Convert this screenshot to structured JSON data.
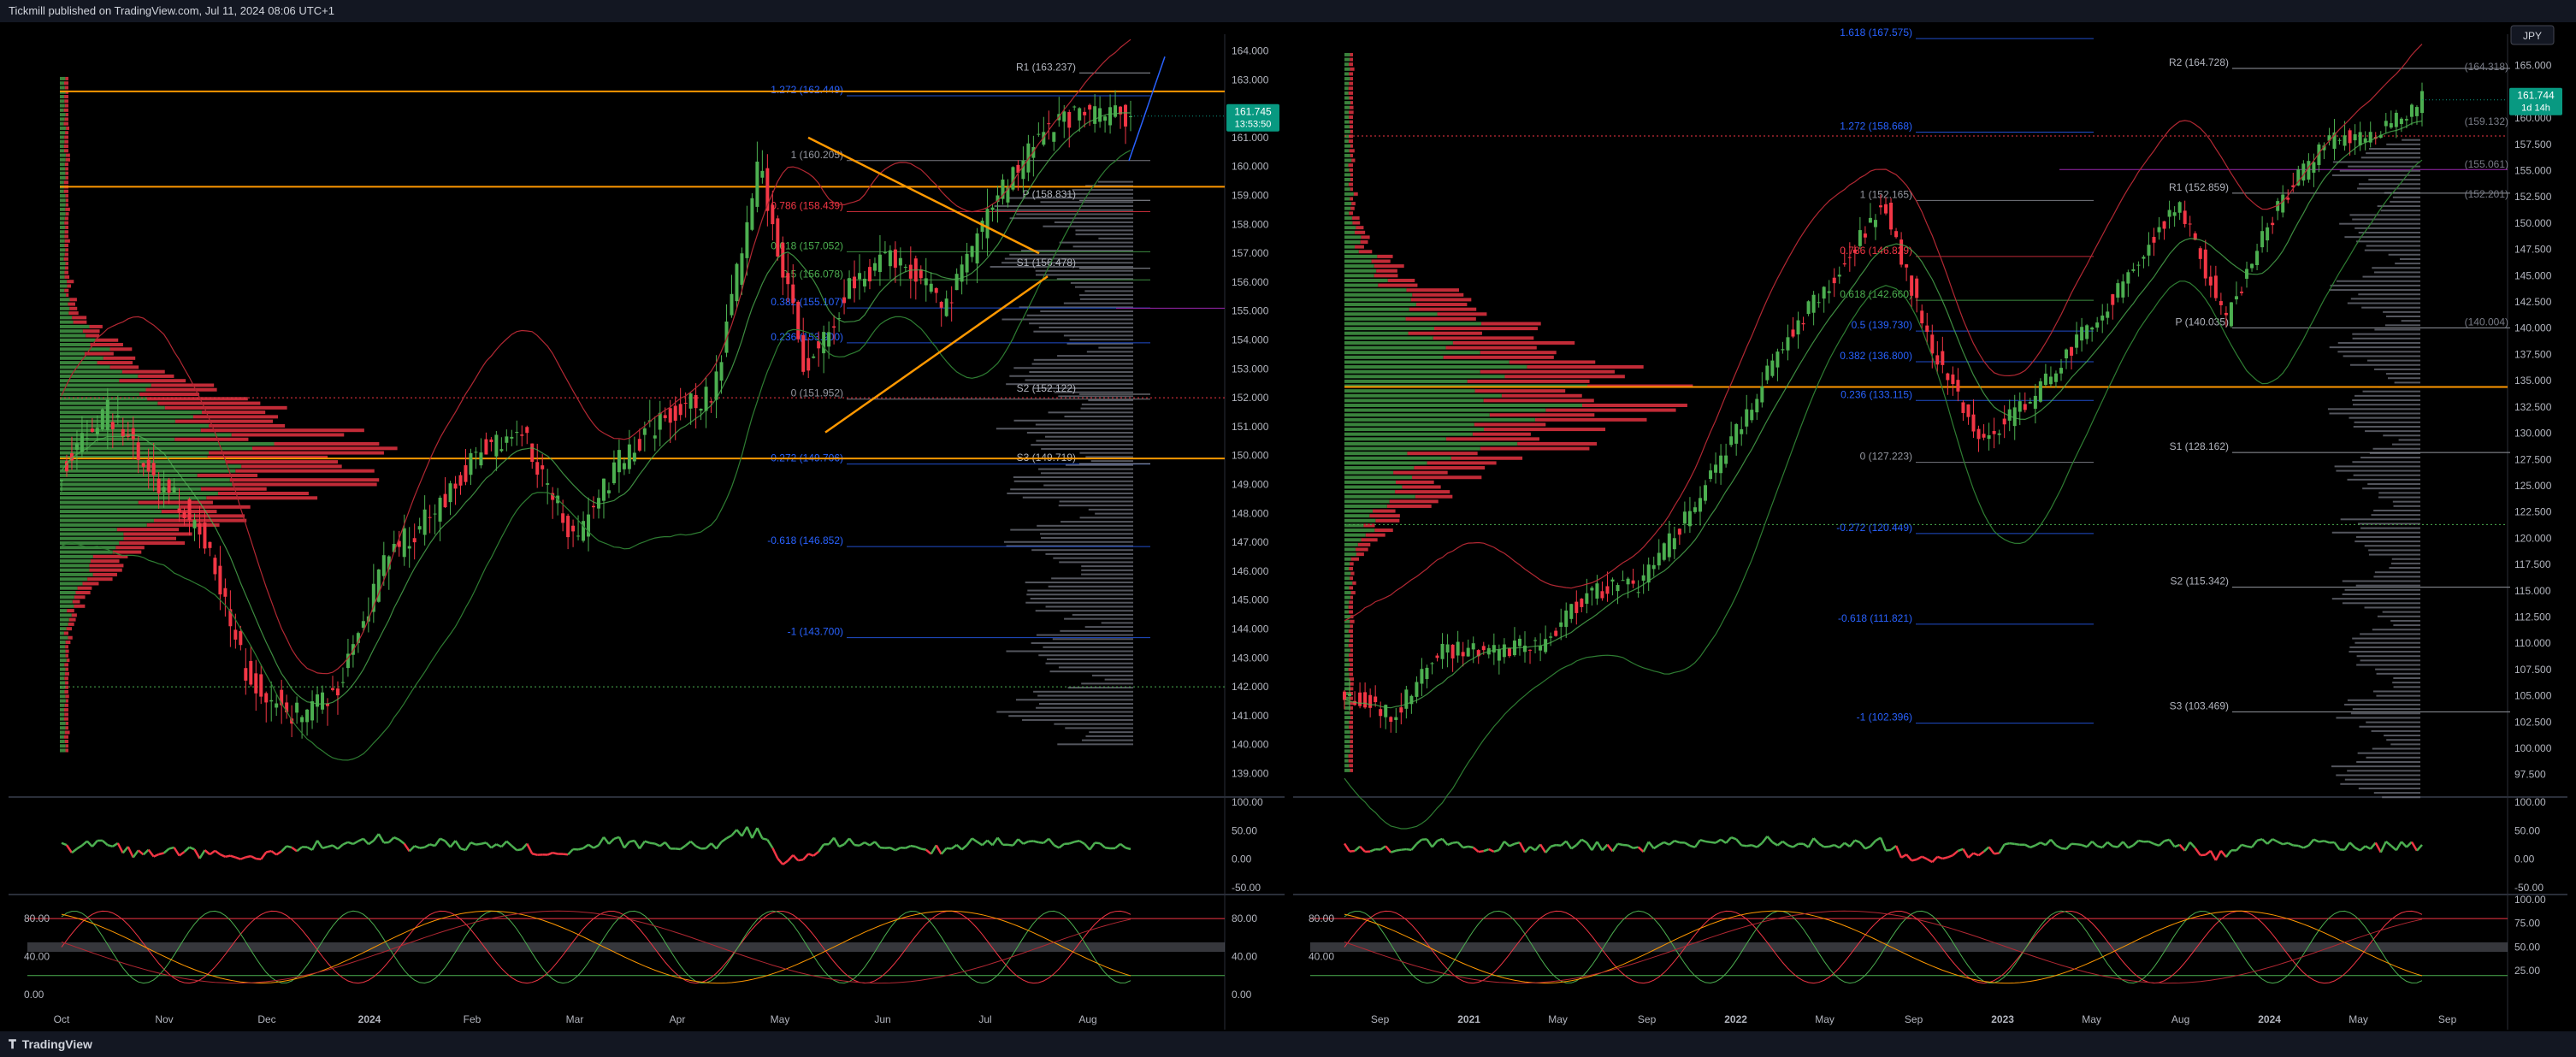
{
  "header": {
    "published": "Tickmill published on TradingView.com, Jul 11, 2024 08:06 UTC+1"
  },
  "footer": {
    "brand": "TradingView",
    "brand_icon": "tradingview-logo-icon"
  },
  "colors": {
    "up": "#4caf50",
    "down": "#f23645",
    "fib_blue": "#2962ff",
    "orange": "#ff9800",
    "pivot_grey": "#9598a1",
    "bb_red": "#b22833",
    "bb_green": "#2e7d32",
    "price_box": "#089981"
  },
  "chart_data": [
    {
      "type": "line",
      "panel": "left",
      "title": "",
      "interval": "daily",
      "x_ticks": [
        "Oct",
        "Nov",
        "Dec",
        "2024",
        "Feb",
        "Mar",
        "Apr",
        "May",
        "Jun",
        "Jul",
        "Aug"
      ],
      "y_ticks": [
        "164.000",
        "163.000",
        "162.000",
        "161.000",
        "160.000",
        "159.000",
        "158.000",
        "157.000",
        "156.000",
        "155.000",
        "154.000",
        "153.000",
        "152.000",
        "151.000",
        "150.000",
        "149.000",
        "148.000",
        "147.000",
        "146.000",
        "145.000",
        "144.000",
        "143.000",
        "142.000",
        "141.000",
        "140.000",
        "139.000"
      ],
      "ylim": [
        138.6,
        164.4
      ],
      "last_price": "161.745",
      "countdown": "13:53:50",
      "price_path": [
        [
          "Oct",
          149.6
        ],
        [
          "Nov",
          151.5
        ],
        [
          "Nov 15",
          149.2
        ],
        [
          "Dec",
          147.5
        ],
        [
          "Dec 10",
          142.3
        ],
        [
          "Dec 28",
          141.0
        ],
        [
          "2024",
          142.0
        ],
        [
          "Jan 15",
          146.5
        ],
        [
          "Feb",
          148.0
        ],
        [
          "Feb 15",
          150.2
        ],
        [
          "Mar",
          150.6
        ],
        [
          "Mar 8",
          147.0
        ],
        [
          "Mar 20",
          149.8
        ],
        [
          "Apr",
          151.5
        ],
        [
          "Apr 10",
          152.0
        ],
        [
          "Apr 29",
          160.2
        ],
        [
          "May 3",
          153.0
        ],
        [
          "May 15",
          156.0
        ],
        [
          "Jun",
          157.0
        ],
        [
          "Jun 12",
          155.0
        ],
        [
          "Jun 20",
          158.5
        ],
        [
          "Jul",
          161.0
        ],
        [
          "Jul 3",
          161.9
        ],
        [
          "Jul 11",
          161.7
        ]
      ],
      "fib_levels": [
        {
          "label": "1.272 (162.449)",
          "value": 162.449
        },
        {
          "label": "1 (160.205)",
          "value": 160.205
        },
        {
          "label": "0.786 (158.439)",
          "value": 158.439
        },
        {
          "label": "0.618 (157.052)",
          "value": 157.052
        },
        {
          "label": "0.5 (156.078)",
          "value": 156.078
        },
        {
          "label": "0.382 (155.107)",
          "value": 155.107
        },
        {
          "label": "0.236 (153.900)",
          "value": 153.9
        },
        {
          "label": "0 (151.952)",
          "value": 151.952
        },
        {
          "label": "-0.272 (149.706)",
          "value": 149.706
        },
        {
          "label": "-0.618 (146.852)",
          "value": 146.852
        },
        {
          "label": "-1 (143.700)",
          "value": 143.7
        }
      ],
      "pivots": [
        {
          "label": "R1 (163.237)",
          "value": 163.237
        },
        {
          "label": "P (158.831)",
          "value": 158.831
        },
        {
          "label": "S1 (156.478)",
          "value": 156.478
        },
        {
          "label": "S2 (152.122)",
          "value": 152.122
        },
        {
          "label": "S3 (149.719)",
          "value": 149.719
        }
      ],
      "horizontal_lines": [
        {
          "value": 162.6,
          "color": "orange"
        },
        {
          "value": 159.3,
          "color": "orange"
        },
        {
          "value": 155.1,
          "color": "purple"
        },
        {
          "value": 149.9,
          "color": "orange"
        },
        {
          "value": 152.0,
          "color": "red-dotted"
        },
        {
          "value": 142.0,
          "color": "green-dotted"
        }
      ],
      "rsi": {
        "y_ticks": [
          "100.00",
          "50.00",
          "0.00",
          "-50.00"
        ]
      },
      "stoch": {
        "left_ticks": [
          "80.00",
          "40.00",
          "0.00"
        ],
        "right_ticks": [
          "80.00",
          "40.00",
          "0.00"
        ]
      }
    },
    {
      "type": "line",
      "panel": "right",
      "title": "",
      "interval": "weekly",
      "currency": "JPY",
      "x_ticks": [
        "Sep",
        "2021",
        "May",
        "Sep",
        "2022",
        "May",
        "Sep",
        "2023",
        "May",
        "Aug",
        "2024",
        "May",
        "Sep"
      ],
      "y_ticks": [
        "165.000",
        "162.500",
        "160.000",
        "157.500",
        "155.000",
        "152.500",
        "150.000",
        "147.500",
        "145.000",
        "142.500",
        "140.000",
        "137.500",
        "135.000",
        "132.500",
        "130.000",
        "127.500",
        "125.000",
        "122.500",
        "120.000",
        "117.500",
        "115.000",
        "112.500",
        "110.000",
        "107.500",
        "105.000",
        "102.500",
        "100.000",
        "97.500"
      ],
      "ylim": [
        96.5,
        167.5
      ],
      "last_price": "161.744",
      "countdown": "1d 14h",
      "price_path": [
        [
          "Sep",
          105.5
        ],
        [
          "2021",
          103.2
        ],
        [
          "Mar 21",
          109.5
        ],
        [
          "May",
          109.0
        ],
        [
          "Sep",
          110.0
        ],
        [
          "Dec 21",
          115.0
        ],
        [
          "2022",
          115.5
        ],
        [
          "Mar 22",
          122.0
        ],
        [
          "May",
          130.0
        ],
        [
          "Jul 22",
          139.0
        ],
        [
          "Sep",
          145.0
        ],
        [
          "Oct 22",
          151.9
        ],
        [
          "Nov 22",
          138.0
        ],
        [
          "2023",
          129.5
        ],
        [
          "Mar 23",
          133.0
        ],
        [
          "May",
          139.0
        ],
        [
          "Aug",
          145.0
        ],
        [
          "Nov 23",
          151.9
        ],
        [
          "2024",
          141.0
        ],
        [
          "Mar 24",
          151.0
        ],
        [
          "May",
          157.8
        ],
        [
          "Jun 24",
          158.5
        ],
        [
          "Jul 24",
          161.7
        ]
      ],
      "fib_levels": [
        {
          "label": "1.618 (167.575)",
          "value": 167.575
        },
        {
          "label": "1.272 (158.668)",
          "value": 158.668
        },
        {
          "label": "1 (152.165)",
          "value": 152.165
        },
        {
          "label": "0.786 (146.829)",
          "value": 146.829
        },
        {
          "label": "0.618 (142.660)",
          "value": 142.66
        },
        {
          "label": "0.5 (139.730)",
          "value": 139.73
        },
        {
          "label": "0.382 (136.800)",
          "value": 136.8
        },
        {
          "label": "0.236 (133.115)",
          "value": 133.115
        },
        {
          "label": "0 (127.223)",
          "value": 127.223
        },
        {
          "label": "-0.272 (120.449)",
          "value": 120.449
        },
        {
          "label": "-0.618 (111.821)",
          "value": 111.821
        },
        {
          "label": "-1 (102.396)",
          "value": 102.396
        }
      ],
      "pivots": [
        {
          "label": "R2 (164.728)",
          "value": 164.728
        },
        {
          "label": "R1 (152.859)",
          "value": 152.859
        },
        {
          "label": "P (140.035)",
          "value": 140.035
        },
        {
          "label": "S1 (128.162)",
          "value": 128.162
        },
        {
          "label": "S2 (115.342)",
          "value": 115.342
        },
        {
          "label": "S3 (103.469)",
          "value": 103.469
        }
      ],
      "right_tags": [
        {
          "label": "(164.318)",
          "value": 164.318
        },
        {
          "label": "(159.132)",
          "value": 159.132
        },
        {
          "label": "(155.061)",
          "value": 155.061
        },
        {
          "label": "(152.201)",
          "value": 152.201
        },
        {
          "label": "(140.004)",
          "value": 140.004
        }
      ],
      "horizontal_lines": [
        {
          "value": 134.4,
          "color": "orange"
        },
        {
          "value": 158.3,
          "color": "red-dotted"
        },
        {
          "value": 121.3,
          "color": "green-dotted"
        },
        {
          "value": 155.1,
          "color": "purple"
        }
      ],
      "rsi": {
        "y_ticks": [
          "100.00",
          "50.00",
          "0.00",
          "-50.00"
        ]
      },
      "stoch": {
        "right_ticks": [
          "100.00",
          "75.00",
          "50.00",
          "25.00"
        ],
        "left_ticks": [
          "80.00",
          "40.00"
        ]
      }
    }
  ]
}
